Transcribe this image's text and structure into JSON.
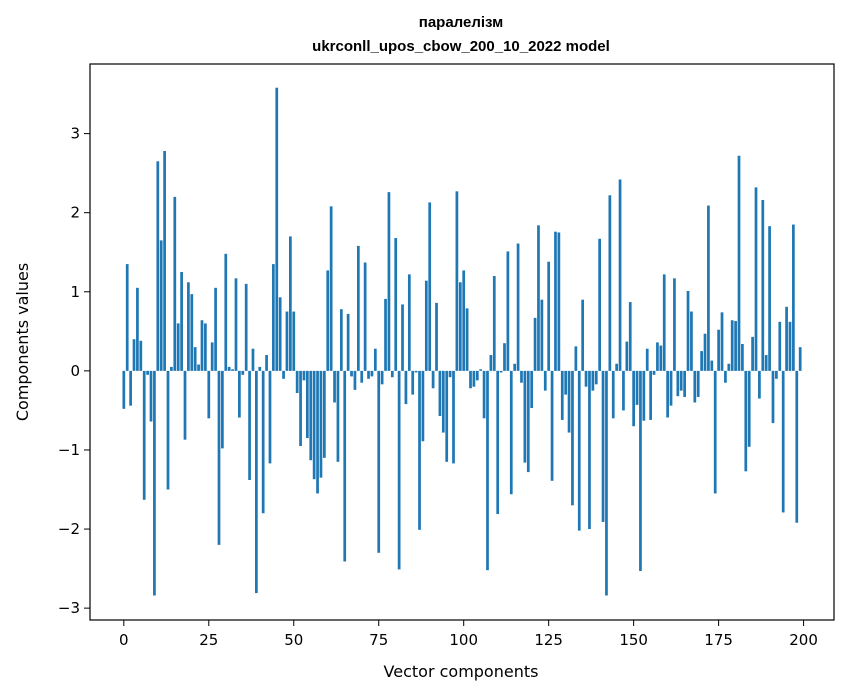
{
  "chart_data": {
    "type": "bar",
    "title": "паралелізм",
    "subtitle": "ukrconll_upos_cbow_200_10_2022 model",
    "xlabel": "Vector components",
    "ylabel": "Components values",
    "xlim": [
      -9.95,
      208.95
    ],
    "ylim": [
      -3.15,
      3.88
    ],
    "xticks": [
      0,
      25,
      50,
      75,
      100,
      125,
      150,
      175,
      200
    ],
    "yticks": [
      -3,
      -2,
      -1,
      0,
      1,
      2,
      3
    ],
    "xtick_labels": [
      "0",
      "25",
      "50",
      "75",
      "100",
      "125",
      "150",
      "175",
      "200"
    ],
    "ytick_labels": [
      "−3",
      "−2",
      "−1",
      "0",
      "1",
      "2",
      "3"
    ],
    "bar_color": "#1f77b4",
    "grid": false,
    "x": [
      0,
      1,
      2,
      3,
      4,
      5,
      6,
      7,
      8,
      9,
      10,
      11,
      12,
      13,
      14,
      15,
      16,
      17,
      18,
      19,
      20,
      21,
      22,
      23,
      24,
      25,
      26,
      27,
      28,
      29,
      30,
      31,
      32,
      33,
      34,
      35,
      36,
      37,
      38,
      39,
      40,
      41,
      42,
      43,
      44,
      45,
      46,
      47,
      48,
      49,
      50,
      51,
      52,
      53,
      54,
      55,
      56,
      57,
      58,
      59,
      60,
      61,
      62,
      63,
      64,
      65,
      66,
      67,
      68,
      69,
      70,
      71,
      72,
      73,
      74,
      75,
      76,
      77,
      78,
      79,
      80,
      81,
      82,
      83,
      84,
      85,
      86,
      87,
      88,
      89,
      90,
      91,
      92,
      93,
      94,
      95,
      96,
      97,
      98,
      99,
      100,
      101,
      102,
      103,
      104,
      105,
      106,
      107,
      108,
      109,
      110,
      111,
      112,
      113,
      114,
      115,
      116,
      117,
      118,
      119,
      120,
      121,
      122,
      123,
      124,
      125,
      126,
      127,
      128,
      129,
      130,
      131,
      132,
      133,
      134,
      135,
      136,
      137,
      138,
      139,
      140,
      141,
      142,
      143,
      144,
      145,
      146,
      147,
      148,
      149,
      150,
      151,
      152,
      153,
      154,
      155,
      156,
      157,
      158,
      159,
      160,
      161,
      162,
      163,
      164,
      165,
      166,
      167,
      168,
      169,
      170,
      171,
      172,
      173,
      174,
      175,
      176,
      177,
      178,
      179,
      180,
      181,
      182,
      183,
      184,
      185,
      186,
      187,
      188,
      189,
      190,
      191,
      192,
      193,
      194,
      195,
      196,
      197,
      198,
      199
    ],
    "values": [
      -0.48,
      1.35,
      -0.44,
      0.4,
      1.05,
      0.38,
      -1.63,
      -0.05,
      -0.64,
      -2.84,
      2.65,
      1.65,
      2.78,
      -1.5,
      0.05,
      2.2,
      0.6,
      1.25,
      -0.87,
      1.12,
      0.97,
      0.3,
      0.08,
      0.64,
      0.6,
      -0.6,
      0.36,
      1.05,
      -2.2,
      -0.98,
      1.48,
      0.05,
      0.02,
      1.17,
      -0.59,
      -0.05,
      1.1,
      -1.38,
      0.28,
      -2.81,
      0.05,
      -1.8,
      0.2,
      -1.17,
      1.35,
      3.58,
      0.93,
      -0.1,
      0.75,
      1.7,
      0.75,
      -0.28,
      -0.95,
      -0.12,
      -0.85,
      -1.13,
      -1.37,
      -1.55,
      -1.35,
      -1.1,
      1.27,
      2.08,
      -0.4,
      -1.15,
      0.78,
      -2.41,
      0.72,
      -0.07,
      -0.24,
      1.58,
      -0.15,
      1.37,
      -0.1,
      -0.07,
      0.28,
      -2.3,
      -0.17,
      0.91,
      2.26,
      -0.08,
      1.68,
      -2.51,
      0.84,
      -0.42,
      1.22,
      -0.3,
      -0.02,
      -2.01,
      -0.89,
      1.14,
      2.13,
      -0.22,
      0.86,
      -0.57,
      -0.78,
      -1.15,
      -0.08,
      -1.17,
      2.27,
      1.12,
      1.27,
      0.79,
      -0.22,
      -0.2,
      -0.12,
      0.02,
      -0.6,
      -2.52,
      0.2,
      1.2,
      -1.81,
      -0.02,
      0.35,
      1.51,
      -1.56,
      0.09,
      1.61,
      -0.15,
      -1.16,
      -1.28,
      -0.47,
      0.67,
      1.84,
      0.9,
      -0.25,
      1.38,
      -1.39,
      1.76,
      1.75,
      -0.62,
      -0.3,
      -0.78,
      -1.7,
      0.31,
      -2.02,
      0.9,
      -0.2,
      -2.0,
      -0.25,
      -0.17,
      1.67,
      -1.91,
      -2.84,
      2.22,
      -0.6,
      0.09,
      2.42,
      -0.5,
      0.37,
      0.87,
      -0.7,
      -0.43,
      -2.53,
      -0.63,
      0.28,
      -0.62,
      -0.05,
      0.36,
      0.32,
      1.22,
      -0.59,
      -0.44,
      1.17,
      -0.32,
      -0.25,
      -0.33,
      1.01,
      0.75,
      -0.4,
      -0.33,
      0.25,
      0.47,
      2.09,
      0.13,
      -1.55,
      0.52,
      0.74,
      -0.15,
      0.09,
      0.64,
      0.63,
      2.72,
      0.34,
      -1.27,
      -0.96,
      0.43,
      2.32,
      -0.35,
      2.16,
      0.2,
      1.83,
      -0.66,
      -0.1,
      0.62,
      -1.79,
      0.81,
      0.62,
      1.85,
      -1.92,
      0.3
    ]
  }
}
